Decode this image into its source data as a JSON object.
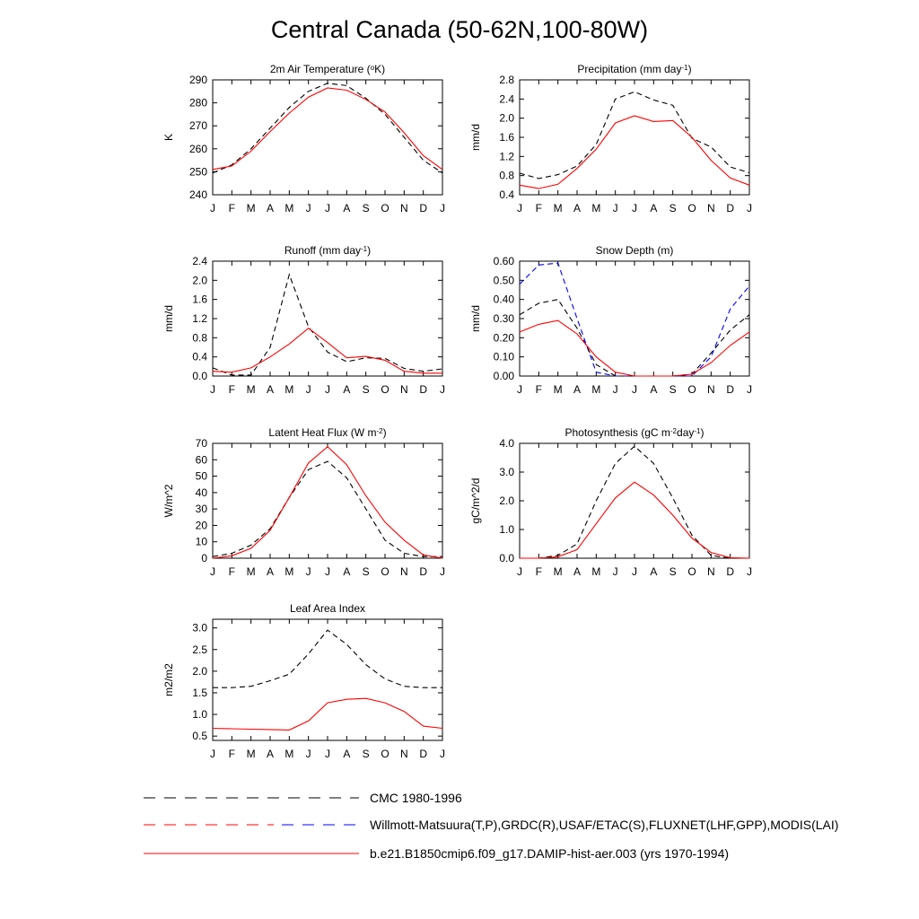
{
  "title": "Central Canada (50-62N,100-80W)",
  "colors": {
    "model": "#ff0000",
    "obs": "#000000",
    "obs2": "#0000ff"
  },
  "chart_data": [
    {
      "type": "line",
      "title_main": "2m Air Temperature (",
      "title_sup": "o",
      "title_rest": "K)",
      "ylabel": "K",
      "categories": [
        "J",
        "F",
        "M",
        "A",
        "M",
        "J",
        "J",
        "A",
        "S",
        "O",
        "N",
        "D",
        "J"
      ],
      "ylim": [
        240,
        290
      ],
      "yticks": [
        240,
        250,
        260,
        270,
        280,
        290
      ],
      "ytick_labels": [
        "240",
        "250",
        "260",
        "270",
        "280",
        "290"
      ],
      "series": [
        {
          "style": "obs",
          "values": [
            249.5,
            253,
            260,
            269,
            278,
            285,
            288.5,
            287.5,
            282,
            275,
            265,
            255,
            249.5
          ]
        },
        {
          "style": "model",
          "values": [
            251,
            252.5,
            259,
            267.5,
            275.5,
            282.5,
            286.5,
            285.5,
            281.5,
            276,
            267,
            257,
            251
          ]
        }
      ]
    },
    {
      "type": "line",
      "title_main": "Precipitation (mm day",
      "title_sup": "-1",
      "title_rest": ")",
      "ylabel": "mm/d",
      "categories": [
        "J",
        "F",
        "M",
        "A",
        "M",
        "J",
        "J",
        "A",
        "S",
        "O",
        "N",
        "D",
        "J"
      ],
      "ylim": [
        0.4,
        2.8
      ],
      "yticks": [
        0.4,
        0.8,
        1.2,
        1.6,
        2.0,
        2.4,
        2.8
      ],
      "ytick_labels": [
        "0.4",
        "0.8",
        "1.2",
        "1.6",
        "2.0",
        "2.4",
        "2.8"
      ],
      "series": [
        {
          "style": "obs",
          "values": [
            0.85,
            0.74,
            0.82,
            1.0,
            1.45,
            2.4,
            2.55,
            2.38,
            2.27,
            1.58,
            1.4,
            0.98,
            0.86
          ]
        },
        {
          "style": "model",
          "values": [
            0.6,
            0.53,
            0.62,
            0.95,
            1.35,
            1.9,
            2.05,
            1.93,
            1.95,
            1.6,
            1.12,
            0.75,
            0.6
          ]
        }
      ]
    },
    {
      "type": "line",
      "title_main": "Runoff (mm day",
      "title_sup": "-1",
      "title_rest": ")",
      "ylabel": "mm/d",
      "categories": [
        "J",
        "F",
        "M",
        "A",
        "M",
        "J",
        "J",
        "A",
        "S",
        "O",
        "N",
        "D",
        "J"
      ],
      "ylim": [
        0,
        2.4
      ],
      "yticks": [
        0,
        0.4,
        0.8,
        1.2,
        1.6,
        2.0,
        2.4
      ],
      "ytick_labels": [
        "0.0",
        "0.4",
        "0.8",
        "1.2",
        "1.6",
        "2.0",
        "2.4"
      ],
      "series": [
        {
          "style": "obs",
          "values": [
            0.17,
            0.02,
            0.02,
            0.6,
            2.12,
            1.03,
            0.5,
            0.3,
            0.38,
            0.37,
            0.16,
            0.1,
            0.15
          ]
        },
        {
          "style": "model",
          "values": [
            0.1,
            0.08,
            0.17,
            0.4,
            0.67,
            1.0,
            0.7,
            0.38,
            0.41,
            0.33,
            0.1,
            0.06,
            0.06
          ]
        }
      ]
    },
    {
      "type": "line",
      "title_main": "Snow Depth (m)",
      "title_sup": "",
      "title_rest": "",
      "ylabel": "mm/d",
      "categories": [
        "J",
        "F",
        "M",
        "A",
        "M",
        "J",
        "J",
        "A",
        "S",
        "O",
        "N",
        "D",
        "J"
      ],
      "ylim": [
        0,
        0.6
      ],
      "yticks": [
        0,
        0.1,
        0.2,
        0.3,
        0.4,
        0.5,
        0.6
      ],
      "ytick_labels": [
        "0.00",
        "0.10",
        "0.20",
        "0.30",
        "0.40",
        "0.50",
        "0.60"
      ],
      "series": [
        {
          "style": "obs2",
          "values": [
            0.48,
            0.58,
            0.59,
            0.3,
            0.02,
            0.0,
            0.0,
            0.0,
            0.0,
            0.0,
            0.1,
            0.35,
            0.47
          ]
        },
        {
          "style": "obs",
          "values": [
            0.32,
            0.38,
            0.4,
            0.25,
            0.06,
            0.0,
            0.0,
            0.0,
            0.0,
            0.01,
            0.12,
            0.24,
            0.32
          ]
        },
        {
          "style": "model",
          "values": [
            0.23,
            0.27,
            0.29,
            0.22,
            0.1,
            0.02,
            0.0,
            0.0,
            0.0,
            0.01,
            0.07,
            0.16,
            0.23
          ]
        }
      ]
    },
    {
      "type": "line",
      "title_main": "Latent Heat Flux (W m",
      "title_sup": "-2",
      "title_rest": ")",
      "ylabel": "W/m^2",
      "categories": [
        "J",
        "F",
        "M",
        "A",
        "M",
        "J",
        "J",
        "A",
        "S",
        "O",
        "N",
        "D",
        "J"
      ],
      "ylim": [
        0,
        70
      ],
      "yticks": [
        0,
        10,
        20,
        30,
        40,
        50,
        60,
        70
      ],
      "ytick_labels": [
        "0",
        "10",
        "20",
        "30",
        "40",
        "50",
        "60",
        "70"
      ],
      "series": [
        {
          "style": "obs",
          "values": [
            1,
            3,
            8,
            18,
            37,
            54,
            59,
            49,
            30,
            11,
            3,
            1,
            1
          ]
        },
        {
          "style": "model",
          "values": [
            0,
            1.5,
            6,
            17,
            37,
            58,
            68,
            57,
            38,
            22,
            11,
            2,
            0
          ]
        }
      ]
    },
    {
      "type": "line",
      "title_main": "Photosynthesis (gC m",
      "title_sup": "-2",
      "title_mid": "day",
      "title_sup2": "-1",
      "title_rest": ")",
      "ylabel": "gC/m^2/d",
      "categories": [
        "J",
        "F",
        "M",
        "A",
        "M",
        "J",
        "J",
        "A",
        "S",
        "O",
        "N",
        "D",
        "J"
      ],
      "ylim": [
        0,
        4.0
      ],
      "yticks": [
        0,
        1.0,
        2.0,
        3.0,
        4.0
      ],
      "ytick_labels": [
        "0.0",
        "1.0",
        "2.0",
        "3.0",
        "4.0"
      ],
      "series": [
        {
          "style": "obs",
          "values": [
            0,
            0,
            0.1,
            0.5,
            2.0,
            3.3,
            3.9,
            3.3,
            2.1,
            0.8,
            0.1,
            0,
            0
          ]
        },
        {
          "style": "model",
          "values": [
            0,
            0,
            0.05,
            0.3,
            1.2,
            2.1,
            2.65,
            2.2,
            1.5,
            0.7,
            0.2,
            0.02,
            0
          ]
        }
      ]
    },
    {
      "type": "line",
      "title_main": "Leaf Area Index",
      "title_sup": "",
      "title_rest": "",
      "ylabel": "m2/m2",
      "categories": [
        "J",
        "F",
        "M",
        "A",
        "M",
        "J",
        "J",
        "A",
        "S",
        "O",
        "N",
        "D",
        "J"
      ],
      "ylim": [
        0.4,
        3.2
      ],
      "yticks": [
        0.5,
        1.0,
        1.5,
        2.0,
        2.5,
        3.0
      ],
      "ytick_labels": [
        "0.5",
        "1.0",
        "1.5",
        "2.0",
        "2.5",
        "3.0"
      ],
      "series": [
        {
          "style": "obs",
          "values": [
            1.62,
            1.62,
            1.65,
            1.78,
            1.93,
            2.4,
            2.95,
            2.62,
            2.15,
            1.82,
            1.65,
            1.62,
            1.62
          ]
        },
        {
          "style": "model",
          "values": [
            0.68,
            0.67,
            0.66,
            0.65,
            0.64,
            0.85,
            1.27,
            1.35,
            1.37,
            1.27,
            1.07,
            0.73,
            0.68
          ]
        }
      ]
    }
  ],
  "legend": [
    {
      "style": "obs",
      "label": "CMC 1980-1996"
    },
    {
      "style": "obs_mixed",
      "label": "Willmott-Matsuura(T,P),GRDC(R),USAF/ETAC(S),FLUXNET(LHF,GPP),MODIS(LAI)"
    },
    {
      "style": "model",
      "label": "b.e21.B1850cmip6.f09_g17.DAMIP-hist-aer.003 (yrs 1970-1994)"
    }
  ]
}
